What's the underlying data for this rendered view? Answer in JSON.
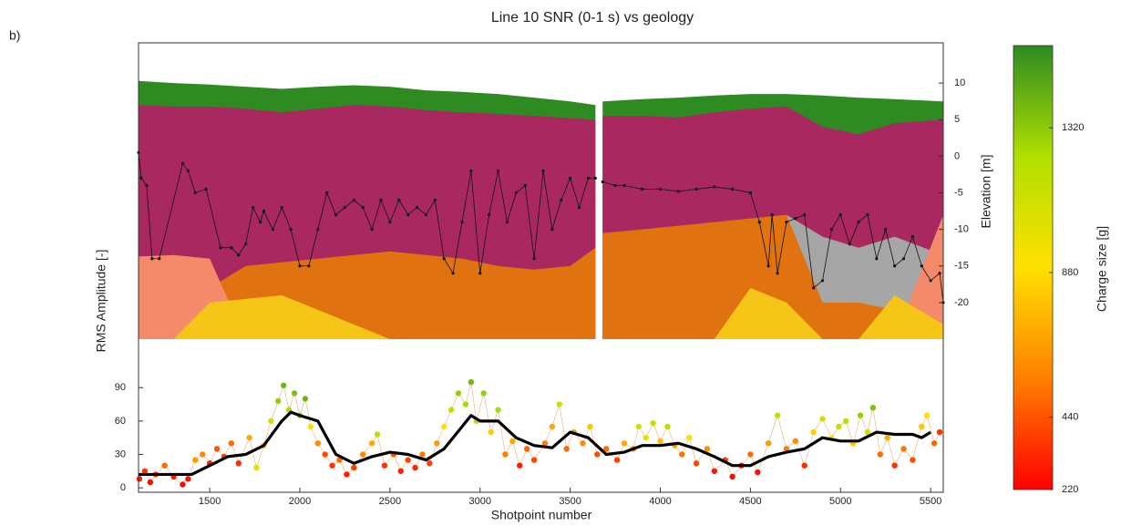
{
  "chart_data": {
    "type": "line",
    "panel_label": "b)",
    "title": "Line 10 SNR (0-1 s) vs geology",
    "xlabel": "Shotpoint number",
    "xlim": [
      1105,
      5570
    ],
    "xticks": [
      1500,
      2000,
      2500,
      3000,
      3500,
      4000,
      4500,
      5000,
      5500
    ],
    "ylabel": "Elevation [m]",
    "ylim": [
      -25,
      15.5
    ],
    "yticks": [
      -20,
      -15,
      -10,
      -5,
      0,
      5,
      10
    ],
    "geology": {
      "x": [
        1105,
        1300,
        1500,
        1700,
        1900,
        2100,
        2300,
        2500,
        2700,
        2900,
        3100,
        3300,
        3500,
        3640,
        null,
        3680,
        3900,
        4100,
        4300,
        4500,
        4700,
        4900,
        5100,
        5300,
        5570
      ],
      "layers": [
        {
          "color": "#2e8b22",
          "top": [
            10.3,
            10,
            9.8,
            9.5,
            9.2,
            9.5,
            9.7,
            9.5,
            9,
            8.8,
            8.5,
            8,
            7.5,
            7,
            null,
            7.5,
            7.8,
            8,
            8.3,
            8.5,
            8.5,
            8.3,
            8,
            7.8,
            7.5
          ]
        },
        {
          "color": "#a8285f",
          "top": [
            7,
            6.8,
            6.8,
            6.5,
            6,
            6.5,
            7,
            6.8,
            6.3,
            6,
            5.8,
            5.5,
            5.2,
            5,
            null,
            5.5,
            5.5,
            5.3,
            6,
            6.5,
            6.8,
            4,
            3,
            4.5,
            5
          ]
        },
        {
          "color": "#a6a6a6",
          "top": [
            -25,
            -25,
            -25,
            -25,
            -25,
            -25,
            -25,
            -25,
            -25,
            -25,
            -25,
            -25,
            -25,
            -25,
            null,
            -25,
            -25,
            -25,
            -25,
            -25,
            -8,
            -11,
            -12.5,
            -11,
            -13.5
          ]
        },
        {
          "color": "#e07210",
          "top": [
            -25,
            -25,
            -18,
            -15,
            -14.5,
            -14,
            -13.5,
            -13,
            -13.5,
            -14,
            -15,
            -15.5,
            -15,
            -12.5,
            null,
            -10.5,
            -10,
            -9.5,
            -9,
            -8.5,
            -8,
            -20,
            -20,
            -21,
            -21
          ]
        },
        {
          "color": "#f48a6a",
          "top": [
            -13.7,
            -13.5,
            -14,
            -25,
            -25,
            -25,
            -25,
            -25,
            -25,
            -25,
            -25,
            -25,
            -25,
            -25,
            null,
            -25,
            -25,
            -25,
            -25,
            -25,
            -25,
            -25,
            -25,
            -25,
            -8
          ]
        },
        {
          "color": "#f5c518",
          "top": [
            -25,
            -25,
            -20,
            -19.5,
            -19,
            -21,
            -23,
            -25,
            -25,
            -25,
            -25,
            -25,
            -25,
            -25,
            null,
            -25,
            -25,
            -25,
            -25,
            -18,
            -20,
            -25,
            -25,
            -19,
            -23
          ]
        }
      ]
    },
    "elevation": {
      "color": "#111111",
      "x": [
        1105,
        1120,
        1150,
        1180,
        1220,
        1350,
        1380,
        1420,
        1480,
        1560,
        1620,
        1660,
        1700,
        1740,
        1780,
        1800,
        1850,
        1900,
        1950,
        2000,
        2050,
        2100,
        2150,
        2200,
        2250,
        2300,
        2350,
        2400,
        2450,
        2500,
        2550,
        2600,
        2650,
        2700,
        2750,
        2800,
        2850,
        2900,
        2950,
        3000,
        3050,
        3100,
        3150,
        3200,
        3250,
        3300,
        3350,
        3400,
        3450,
        3500,
        3550,
        3600,
        3640,
        null,
        3680,
        3750,
        3800,
        3900,
        4000,
        4100,
        4200,
        4300,
        4400,
        4500,
        4550,
        4600,
        4620,
        4650,
        4700,
        4750,
        4800,
        4850,
        4900,
        4950,
        5000,
        5050,
        5100,
        5150,
        5200,
        5250,
        5300,
        5350,
        5400,
        5450,
        5500,
        5550,
        5570
      ],
      "values": [
        0.5,
        -3,
        -4,
        -14,
        -14,
        -1,
        -2,
        -5,
        -4.5,
        -12.5,
        -12.5,
        -13.5,
        -12,
        -7,
        -9,
        -7.5,
        -10,
        -7,
        -10,
        -15,
        -15,
        -10,
        -5,
        -8,
        -7,
        -6,
        -7,
        -10,
        -6,
        -9,
        -6,
        -8,
        -7,
        -8,
        -6,
        -14,
        -16,
        -9,
        -2,
        -16,
        -8,
        -2,
        -9,
        -5,
        -4,
        -14,
        -2,
        -10,
        -6,
        -3,
        -7,
        -3,
        -3,
        null,
        -3.5,
        -4,
        -4,
        -4.5,
        -4.5,
        -4.8,
        -4.5,
        -4.2,
        -4.5,
        -5,
        -9,
        -15,
        -8,
        -16,
        -9,
        -8.5,
        -8,
        -18,
        -17,
        -10,
        -8,
        -12,
        -9,
        -8,
        -14,
        -10,
        -15,
        -14,
        -11,
        -15,
        -17,
        -16,
        -20
      ]
    },
    "rms": {
      "ylabel": "RMS Amplitude [-]",
      "ylim": [
        -4,
        100
      ],
      "yticks": [
        0,
        30,
        60,
        90
      ],
      "x": [
        1110,
        1140,
        1170,
        1200,
        1250,
        1300,
        1350,
        1380,
        1420,
        1460,
        1500,
        1540,
        1580,
        1620,
        1660,
        1720,
        1760,
        1800,
        1840,
        1880,
        1910,
        1940,
        1970,
        2000,
        2030,
        2060,
        2100,
        2140,
        2180,
        2220,
        2260,
        2300,
        2350,
        2400,
        2430,
        2470,
        2520,
        2560,
        2600,
        2640,
        2680,
        2720,
        2760,
        2800,
        2840,
        2880,
        2920,
        2950,
        2980,
        3020,
        3060,
        3100,
        3140,
        3180,
        3220,
        3260,
        3300,
        3360,
        3400,
        3440,
        3480,
        3520,
        3570,
        3610,
        3650,
        3700,
        3760,
        3800,
        3850,
        3880,
        3920,
        3960,
        4000,
        4040,
        4080,
        4120,
        4160,
        4200,
        4260,
        4300,
        4360,
        4400,
        4450,
        4500,
        4540,
        4600,
        4650,
        4700,
        4750,
        4800,
        4850,
        4900,
        4950,
        4990,
        5030,
        5070,
        5110,
        5150,
        5180,
        5220,
        5260,
        5300,
        5350,
        5400,
        5450,
        5480,
        5520,
        5550
      ],
      "values": [
        8,
        15,
        5,
        12,
        20,
        10,
        3,
        8,
        25,
        30,
        22,
        35,
        28,
        40,
        22,
        45,
        18,
        38,
        60,
        78,
        92,
        70,
        85,
        65,
        80,
        55,
        40,
        30,
        20,
        25,
        12,
        18,
        30,
        40,
        48,
        20,
        30,
        15,
        25,
        18,
        30,
        22,
        40,
        55,
        70,
        85,
        75,
        95,
        60,
        85,
        50,
        70,
        30,
        42,
        20,
        35,
        25,
        40,
        55,
        75,
        35,
        50,
        40,
        55,
        30,
        35,
        25,
        40,
        35,
        55,
        45,
        58,
        42,
        55,
        38,
        30,
        45,
        22,
        35,
        15,
        25,
        10,
        20,
        30,
        14,
        40,
        65,
        35,
        42,
        20,
        50,
        62,
        45,
        55,
        60,
        40,
        65,
        50,
        72,
        30,
        45,
        20,
        35,
        25,
        55,
        65,
        40,
        50
      ],
      "charge": [
        300,
        350,
        250,
        400,
        500,
        280,
        230,
        260,
        650,
        600,
        300,
        450,
        380,
        500,
        330,
        700,
        1000,
        800,
        1100,
        1300,
        1400,
        1250,
        1350,
        1300,
        1400,
        900,
        600,
        420,
        350,
        500,
        300,
        380,
        600,
        700,
        1200,
        350,
        460,
        300,
        400,
        320,
        550,
        380,
        650,
        900,
        1150,
        1300,
        1250,
        1400,
        1200,
        1300,
        800,
        1250,
        550,
        700,
        300,
        480,
        400,
        550,
        700,
        1100,
        500,
        650,
        600,
        800,
        420,
        500,
        380,
        700,
        600,
        1100,
        1000,
        1150,
        750,
        1200,
        700,
        520,
        900,
        400,
        620,
        270,
        380,
        240,
        330,
        500,
        260,
        650,
        1150,
        540,
        600,
        330,
        850,
        1100,
        900,
        1150,
        1200,
        800,
        1300,
        1100,
        1350,
        500,
        700,
        350,
        520,
        420,
        800,
        900,
        480,
        350
      ]
    },
    "trend": {
      "color": "#000000",
      "x": [
        1105,
        1200,
        1300,
        1400,
        1500,
        1600,
        1700,
        1800,
        1900,
        1950,
        2000,
        2100,
        2200,
        2300,
        2400,
        2500,
        2600,
        2700,
        2800,
        2900,
        2950,
        3000,
        3100,
        3200,
        3300,
        3400,
        3500,
        3600,
        3700,
        3800,
        3900,
        4000,
        4100,
        4200,
        4300,
        4400,
        4500,
        4600,
        4700,
        4800,
        4900,
        5000,
        5100,
        5200,
        5300,
        5400,
        5450,
        5500
      ],
      "values": [
        12,
        12,
        12,
        12,
        20,
        28,
        30,
        38,
        60,
        68,
        65,
        60,
        30,
        22,
        28,
        32,
        30,
        25,
        35,
        55,
        65,
        60,
        60,
        45,
        38,
        36,
        50,
        45,
        30,
        32,
        38,
        38,
        40,
        35,
        28,
        20,
        20,
        28,
        32,
        35,
        45,
        42,
        42,
        50,
        48,
        48,
        45,
        50
      ]
    },
    "colorbar": {
      "label": "Charge size [g]",
      "lim": [
        220,
        1570
      ],
      "ticks": [
        220,
        440,
        880,
        1320
      ],
      "colors": [
        "#ff0000",
        "#ff8000",
        "#ffe000",
        "#b0e000",
        "#2e8b22"
      ]
    }
  }
}
